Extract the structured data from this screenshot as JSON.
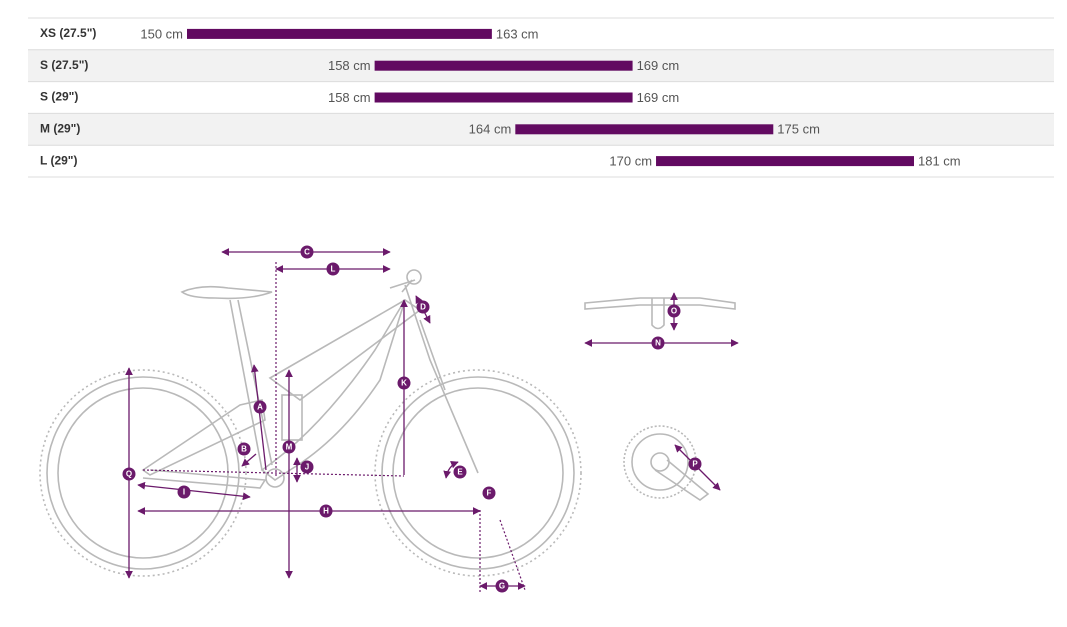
{
  "chart_data": {
    "type": "range_bar",
    "categories": [
      "XS (27.5\")",
      "S (27.5\")",
      "S (29\")",
      "M (29\")",
      "L (29\")"
    ],
    "ranges": [
      {
        "values": [
          150,
          163
        ],
        "value_labels": [
          "150 cm",
          "163 cm"
        ]
      },
      {
        "values": [
          158,
          169
        ],
        "value_labels": [
          "158 cm",
          "169 cm"
        ]
      },
      {
        "values": [
          158,
          169
        ],
        "value_labels": [
          "158 cm",
          "169 cm"
        ]
      },
      {
        "values": [
          164,
          175
        ],
        "value_labels": [
          "164 cm",
          "175 cm"
        ]
      },
      {
        "values": [
          170,
          181
        ],
        "value_labels": [
          "170 cm",
          "181 cm"
        ]
      }
    ],
    "color": "#620a61"
  },
  "diagram": {
    "labels": [
      "C",
      "L",
      "D",
      "K",
      "A",
      "B",
      "M",
      "J",
      "Q",
      "I",
      "H",
      "E",
      "F",
      "G",
      "O",
      "N",
      "P"
    ]
  }
}
